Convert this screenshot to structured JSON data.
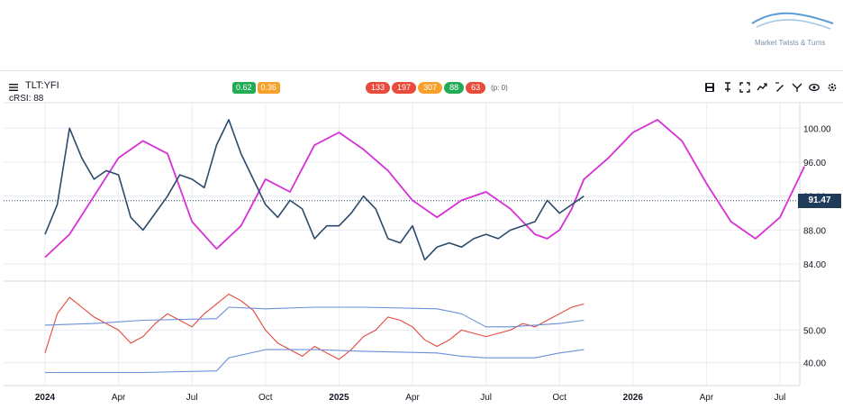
{
  "brand": {
    "name": "Market Twists & Turns"
  },
  "header": {
    "symbol": "TLT:YFI",
    "indicator": "cRSI: 88",
    "left_badges": [
      {
        "text": "0.62",
        "color": "#22ab55"
      },
      {
        "text": "0.36",
        "color": "#f7a12b"
      }
    ],
    "center_badges": [
      {
        "text": "133",
        "color": "#e84b3c"
      },
      {
        "text": "197",
        "color": "#e84b3c"
      },
      {
        "text": "307",
        "color": "#f7a12b"
      },
      {
        "text": "88",
        "color": "#22ab55"
      },
      {
        "text": "63",
        "color": "#e84b3c"
      }
    ],
    "center_suffix": "(p: 0)"
  },
  "toolbar": {
    "icons": [
      "save-icon",
      "pin-icon",
      "fullscreen-icon",
      "compare-icon",
      "draw-icon",
      "indicator-icon",
      "eye-icon",
      "settings-icon"
    ]
  },
  "last_price_label": "91.47",
  "colors": {
    "price": "#2b4a6b",
    "cycle": "#d630d6",
    "crsi": "#e5463a",
    "bands": "#6b8fd9",
    "grid": "#e9ecf2"
  },
  "chart_data": [
    {
      "type": "line",
      "name": "price-panel",
      "x_ticks": [
        "2024",
        "Apr",
        "Jul",
        "Oct",
        "2025",
        "Apr",
        "Jul",
        "Oct",
        "2026",
        "Apr",
        "Jul"
      ],
      "x_tick_bold": [
        true,
        false,
        false,
        false,
        true,
        false,
        false,
        false,
        true,
        false,
        false
      ],
      "y_ticks": [
        "100.00",
        "96.00",
        "92.00",
        "88.00",
        "84.00"
      ],
      "y_tick_values": [
        100,
        96,
        92,
        88,
        84
      ],
      "ylim": [
        82,
        103
      ],
      "xlim": [
        0,
        31
      ],
      "series": [
        {
          "role": "price",
          "x": [
            0,
            0.5,
            1,
            1.5,
            2,
            2.5,
            3,
            3.5,
            4,
            4.5,
            5,
            5.5,
            6,
            6.5,
            7,
            7.5,
            8,
            8.5,
            9,
            9.5,
            10,
            10.5,
            11,
            11.5,
            12,
            12.5,
            13,
            13.5,
            14,
            14.5,
            15,
            15.5,
            16,
            16.5,
            17,
            17.5,
            18,
            18.5,
            19,
            19.5,
            20,
            20.5,
            21,
            21.5,
            22
          ],
          "y": [
            87.5,
            91.0,
            100.0,
            96.5,
            94.0,
            95.0,
            94.5,
            89.5,
            88.0,
            90.0,
            92.0,
            94.5,
            94.0,
            93.0,
            98.0,
            101.0,
            97.0,
            94.0,
            91.0,
            89.5,
            91.5,
            90.5,
            87.0,
            88.5,
            88.5,
            90.0,
            92.0,
            90.5,
            87.0,
            86.5,
            88.5,
            84.5,
            86.0,
            86.5,
            86.0,
            87.0,
            87.5,
            87.0,
            88.0,
            88.5,
            89.0,
            91.5,
            90.0,
            91.0,
            92.0
          ]
        },
        {
          "role": "cycle",
          "x": [
            0,
            1,
            2,
            3,
            4,
            5,
            6,
            7,
            8,
            9,
            10,
            11,
            12,
            13,
            14,
            15,
            16,
            17,
            18,
            19,
            20,
            20.5,
            21,
            21.5,
            22,
            23,
            24,
            25,
            26,
            27,
            28,
            29,
            30,
            31
          ],
          "y": [
            84.8,
            87.5,
            92.0,
            96.5,
            98.5,
            97.0,
            89.0,
            85.8,
            88.5,
            94.0,
            92.5,
            98.0,
            99.5,
            97.5,
            95.0,
            91.5,
            89.5,
            91.5,
            92.5,
            90.5,
            87.5,
            87.0,
            88.0,
            90.5,
            94.0,
            96.5,
            99.5,
            101.0,
            98.5,
            93.5,
            89.0,
            87.0,
            89.5,
            95.5
          ]
        }
      ]
    },
    {
      "type": "line",
      "name": "crsi-panel",
      "y_ticks": [
        "50.00",
        "40.00"
      ],
      "y_tick_values": [
        50,
        40
      ],
      "ylim": [
        33,
        65
      ],
      "xlim": [
        0,
        31
      ],
      "series": [
        {
          "role": "crsi",
          "x": [
            0,
            0.5,
            1,
            1.5,
            2,
            2.5,
            3,
            3.5,
            4,
            4.5,
            5,
            5.5,
            6,
            6.5,
            7,
            7.5,
            8,
            8.5,
            9,
            9.5,
            10,
            10.5,
            11,
            11.5,
            12,
            12.5,
            13,
            13.5,
            14,
            14.5,
            15,
            15.5,
            16,
            16.5,
            17,
            17.5,
            18,
            18.5,
            19,
            19.5,
            20,
            20.5,
            21,
            21.5,
            22
          ],
          "y": [
            43,
            55,
            60,
            57,
            54,
            52,
            50,
            46,
            48,
            52,
            55,
            53,
            51,
            55,
            58,
            61,
            59,
            56,
            50,
            46,
            44,
            42,
            45,
            43,
            41,
            44,
            48,
            50,
            54,
            53,
            51,
            47,
            45,
            47,
            50,
            49,
            48,
            49,
            50,
            52,
            51,
            53,
            55,
            57,
            58
          ]
        },
        {
          "role": "upper-band",
          "x": [
            0,
            2,
            4,
            7,
            7.5,
            9,
            11,
            13,
            16,
            17,
            18,
            19,
            21,
            22
          ],
          "y": [
            51.5,
            52.0,
            53.0,
            53.5,
            57.0,
            56.5,
            57.0,
            57.0,
            56.5,
            55.0,
            51.0,
            51.0,
            52.0,
            53.0
          ]
        },
        {
          "role": "lower-band",
          "x": [
            0,
            2,
            4,
            7,
            7.5,
            9,
            11,
            13,
            16,
            17,
            18,
            19,
            20,
            21,
            22
          ],
          "y": [
            37.0,
            37.0,
            37.0,
            37.5,
            41.5,
            44.0,
            44.0,
            43.5,
            43.0,
            42.0,
            41.5,
            41.5,
            41.5,
            43.0,
            44.0
          ]
        }
      ]
    }
  ]
}
